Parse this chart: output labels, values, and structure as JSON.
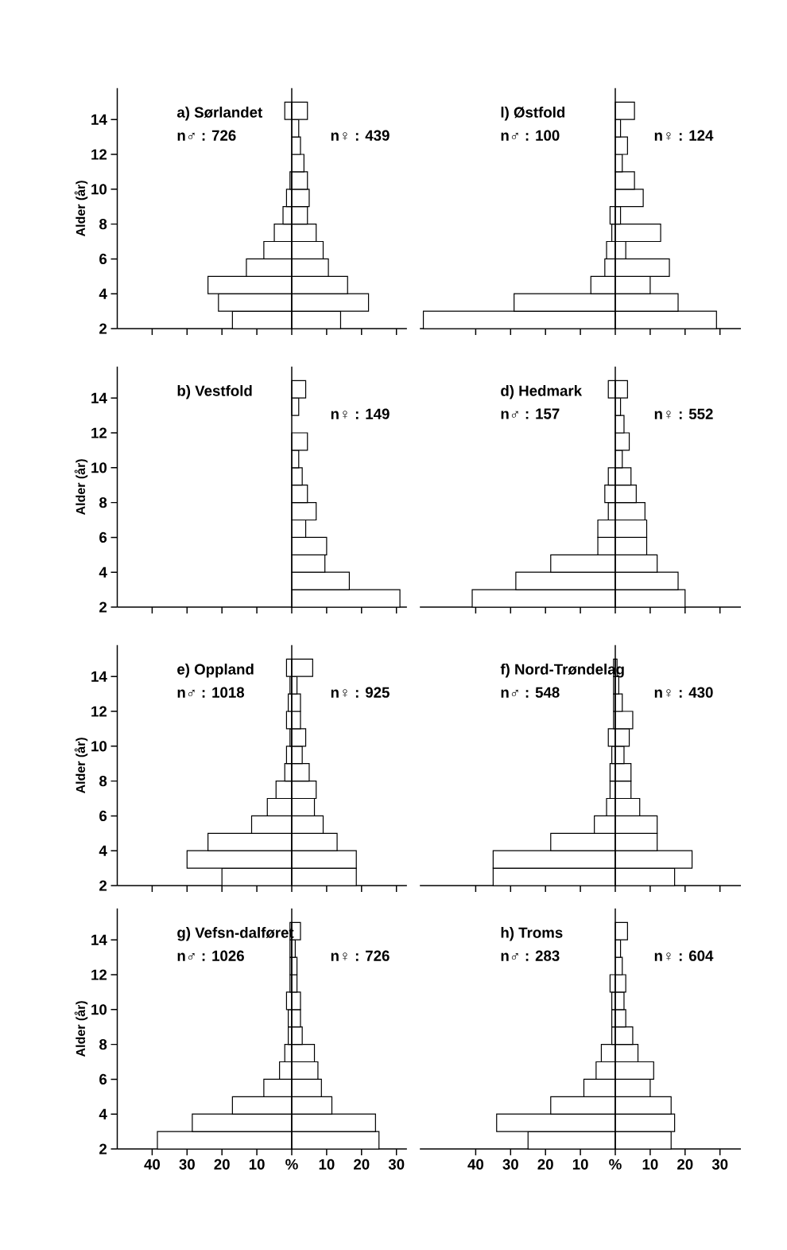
{
  "chart_data": [
    {
      "type": "bar",
      "orientation": "horizontal",
      "title": "a) Sørlandet",
      "annotations": [
        "n♂ : 726",
        "n♀ : 439"
      ],
      "stacked": true,
      "x": [
        2.5,
        3.5,
        4.5,
        5.5,
        6.5,
        7.5,
        8.5,
        9.5,
        10.5,
        11.5,
        12.5,
        13.5,
        14.5
      ],
      "series": [
        {
          "color": "#ffffff",
          "values": [
            -17,
            -21,
            -24,
            -13,
            -8,
            -5,
            -2.5,
            -1.5,
            -0.5,
            null,
            null,
            null,
            -2
          ]
        },
        {
          "color": "#ffffff",
          "values": [
            14,
            22,
            16,
            10.5,
            9,
            7,
            4.5,
            5,
            4.5,
            3.5,
            2.5,
            2,
            4.5
          ]
        }
      ],
      "xlim": [
        -50,
        33
      ],
      "xticks": [
        {
          "value": -40,
          "label": null
        },
        {
          "value": -30,
          "label": null
        },
        {
          "value": -20,
          "label": null
        },
        {
          "value": -10,
          "label": null
        },
        {
          "value": 0,
          "label": null
        },
        {
          "value": 10,
          "label": null
        },
        {
          "value": 20,
          "label": null
        },
        {
          "value": 30,
          "label": null
        }
      ],
      "ylim": [
        2,
        15.8
      ],
      "yticks": [
        2,
        4,
        6,
        8,
        10,
        12,
        14
      ],
      "ylabel": "Alder (år)",
      "tick_labels": "y",
      "ref_lines": [
        {
          "axis": "x",
          "value": 0
        }
      ]
    },
    {
      "type": "bar",
      "orientation": "horizontal",
      "title": "l) Østfold",
      "annotations": [
        "n♂ : 100",
        "n♀ : 124"
      ],
      "stacked": true,
      "x": [
        2.5,
        3.5,
        4.5,
        5.5,
        6.5,
        7.5,
        8.5,
        9.5,
        10.5,
        11.5,
        12.5,
        13.5,
        14.5
      ],
      "series": [
        {
          "color": "#ffffff",
          "values": [
            -55,
            -29,
            -7,
            -3,
            -2.5,
            -1,
            -1.5,
            null,
            null,
            null,
            null,
            null,
            null
          ]
        },
        {
          "color": "#ffffff",
          "values": [
            29,
            18,
            10,
            15.5,
            3,
            13,
            1.5,
            8,
            5.5,
            2,
            3.5,
            1.5,
            5.5
          ]
        }
      ],
      "xlim": [
        -56,
        36
      ],
      "xticks": [
        {
          "value": -40,
          "label": null
        },
        {
          "value": -30,
          "label": null
        },
        {
          "value": -20,
          "label": null
        },
        {
          "value": -10,
          "label": null
        },
        {
          "value": 0,
          "label": null
        },
        {
          "value": 10,
          "label": null
        },
        {
          "value": 20,
          "label": null
        },
        {
          "value": 30,
          "label": null
        }
      ],
      "ylim": [
        2,
        15.8
      ],
      "tick_labels": false,
      "ref_lines": [
        {
          "axis": "x",
          "value": 0
        }
      ]
    },
    {
      "type": "bar",
      "orientation": "horizontal",
      "title": "b) Vestfold",
      "annotations": [
        "n♀ : 149"
      ],
      "stacked": true,
      "x": [
        2.5,
        3.5,
        4.5,
        5.5,
        6.5,
        7.5,
        8.5,
        9.5,
        10.5,
        11.5,
        12.5,
        13.5,
        14.5
      ],
      "series": [
        {
          "color": "#ffffff",
          "values": [
            31,
            16.5,
            9.5,
            10,
            4,
            7,
            4.5,
            3,
            2,
            4.5,
            null,
            2,
            4
          ]
        }
      ],
      "xlim": [
        -50,
        33
      ],
      "xticks": [
        {
          "value": -40,
          "label": null
        },
        {
          "value": -30,
          "label": null
        },
        {
          "value": -20,
          "label": null
        },
        {
          "value": -10,
          "label": null
        },
        {
          "value": 0,
          "label": null
        },
        {
          "value": 10,
          "label": null
        },
        {
          "value": 20,
          "label": null
        },
        {
          "value": 30,
          "label": null
        }
      ],
      "ylim": [
        2,
        15.8
      ],
      "yticks": [
        2,
        4,
        6,
        8,
        10,
        12,
        14
      ],
      "ylabel": "Alder (år)",
      "tick_labels": "y",
      "ref_lines": [
        {
          "axis": "x",
          "value": 0
        }
      ]
    },
    {
      "type": "bar",
      "orientation": "horizontal",
      "title": "d) Hedmark",
      "annotations": [
        "n♂ : 157",
        "n♀ : 552"
      ],
      "stacked": true,
      "x": [
        2.5,
        3.5,
        4.5,
        5.5,
        6.5,
        7.5,
        8.5,
        9.5,
        10.5,
        11.5,
        12.5,
        13.5,
        14.5
      ],
      "series": [
        {
          "color": "#ffffff",
          "values": [
            -41,
            -28.5,
            -18.5,
            -5,
            -5,
            -2,
            -3,
            -2,
            null,
            null,
            null,
            null,
            -2
          ]
        },
        {
          "color": "#ffffff",
          "values": [
            20,
            18,
            12,
            9,
            9,
            8.5,
            6,
            4.5,
            2,
            4,
            2.5,
            1.5,
            3.5
          ]
        }
      ],
      "xlim": [
        -56,
        36
      ],
      "xticks": [
        {
          "value": -40,
          "label": null
        },
        {
          "value": -30,
          "label": null
        },
        {
          "value": -20,
          "label": null
        },
        {
          "value": -10,
          "label": null
        },
        {
          "value": 0,
          "label": null
        },
        {
          "value": 10,
          "label": null
        },
        {
          "value": 20,
          "label": null
        },
        {
          "value": 30,
          "label": null
        }
      ],
      "ylim": [
        2,
        15.8
      ],
      "tick_labels": false,
      "ref_lines": [
        {
          "axis": "x",
          "value": 0
        }
      ]
    },
    {
      "type": "bar",
      "orientation": "horizontal",
      "title": "e) Oppland",
      "annotations": [
        "n♂ : 1018",
        "n♀ : 925"
      ],
      "stacked": true,
      "x": [
        2.5,
        3.5,
        4.5,
        5.5,
        6.5,
        7.5,
        8.5,
        9.5,
        10.5,
        11.5,
        12.5,
        13.5,
        14.5
      ],
      "series": [
        {
          "color": "#ffffff",
          "values": [
            -20,
            -30,
            -24,
            -11.5,
            -7,
            -4.5,
            -2,
            -1.5,
            -0.5,
            -1.5,
            -1,
            -0.5,
            -1.5
          ]
        },
        {
          "color": "#ffffff",
          "values": [
            18.5,
            18.5,
            13,
            9,
            6.5,
            7,
            5,
            3,
            4,
            2.5,
            2.5,
            1.5,
            6
          ]
        }
      ],
      "xlim": [
        -50,
        33
      ],
      "xticks": [
        {
          "value": -40,
          "label": null
        },
        {
          "value": -30,
          "label": null
        },
        {
          "value": -20,
          "label": null
        },
        {
          "value": -10,
          "label": null
        },
        {
          "value": 0,
          "label": null
        },
        {
          "value": 10,
          "label": null
        },
        {
          "value": 20,
          "label": null
        },
        {
          "value": 30,
          "label": null
        }
      ],
      "ylim": [
        2,
        15.8
      ],
      "yticks": [
        2,
        4,
        6,
        8,
        10,
        12,
        14
      ],
      "ylabel": "Alder (år)",
      "tick_labels": "y",
      "ref_lines": [
        {
          "axis": "x",
          "value": 0
        }
      ]
    },
    {
      "type": "bar",
      "orientation": "horizontal",
      "title": "f) Nord-Trøndelag",
      "annotations": [
        "n♂ : 548",
        "n♀ : 430"
      ],
      "stacked": true,
      "x": [
        2.5,
        3.5,
        4.5,
        5.5,
        6.5,
        7.5,
        8.5,
        9.5,
        10.5,
        11.5,
        12.5,
        13.5,
        14.5
      ],
      "series": [
        {
          "color": "#ffffff",
          "values": [
            -35,
            -35,
            -18.5,
            -6,
            -2.5,
            -1.5,
            -1.5,
            -1,
            -2,
            -0.5,
            -0.5,
            -0.5,
            -0.5
          ]
        },
        {
          "color": "#ffffff",
          "values": [
            17,
            22,
            12,
            12,
            7,
            4.5,
            4.5,
            2.5,
            4,
            5,
            2,
            1,
            0.5
          ]
        }
      ],
      "xlim": [
        -56,
        36
      ],
      "xticks": [
        {
          "value": -40,
          "label": null
        },
        {
          "value": -30,
          "label": null
        },
        {
          "value": -20,
          "label": null
        },
        {
          "value": -10,
          "label": null
        },
        {
          "value": 0,
          "label": null
        },
        {
          "value": 10,
          "label": null
        },
        {
          "value": 20,
          "label": null
        },
        {
          "value": 30,
          "label": null
        }
      ],
      "ylim": [
        2,
        15.8
      ],
      "tick_labels": false,
      "ref_lines": [
        {
          "axis": "x",
          "value": 0
        }
      ]
    },
    {
      "type": "bar",
      "orientation": "horizontal",
      "title": "g) Vefsn-dalføret",
      "annotations": [
        "n♂ : 1026",
        "n♀ : 726"
      ],
      "stacked": true,
      "x": [
        2.5,
        3.5,
        4.5,
        5.5,
        6.5,
        7.5,
        8.5,
        9.5,
        10.5,
        11.5,
        12.5,
        13.5,
        14.5
      ],
      "series": [
        {
          "color": "#ffffff",
          "values": [
            -38.5,
            -28.5,
            -17,
            -8,
            -3.5,
            -2,
            -1,
            -1,
            -1.5,
            -0.5,
            -0.5,
            -0.5,
            -0.5
          ]
        },
        {
          "color": "#ffffff",
          "values": [
            25,
            24,
            11.5,
            8.5,
            7.5,
            6.5,
            3,
            2.5,
            2.5,
            1.5,
            1.5,
            1,
            2.5
          ]
        }
      ],
      "xlim": [
        -50,
        33
      ],
      "xticks": [
        {
          "value": -40,
          "label": "40"
        },
        {
          "value": -30,
          "label": "30"
        },
        {
          "value": -20,
          "label": "20"
        },
        {
          "value": -10,
          "label": "10"
        },
        {
          "value": 0,
          "label": "%"
        },
        10,
        20,
        30
      ],
      "ylim": [
        2,
        15.8
      ],
      "yticks": [
        2,
        4,
        6,
        8,
        10,
        12,
        14
      ],
      "ylabel": "Alder (år)",
      "ref_lines": [
        {
          "axis": "x",
          "value": 0
        }
      ]
    },
    {
      "type": "bar",
      "orientation": "horizontal",
      "title": "h) Troms",
      "annotations": [
        "n♂ : 283",
        "n♀ : 604"
      ],
      "stacked": true,
      "x": [
        2.5,
        3.5,
        4.5,
        5.5,
        6.5,
        7.5,
        8.5,
        9.5,
        10.5,
        11.5,
        12.5,
        13.5,
        14.5
      ],
      "series": [
        {
          "color": "#ffffff",
          "values": [
            -25,
            -34,
            -18.5,
            -9,
            -5.5,
            -4,
            -1,
            -1,
            -1,
            -1.5,
            null,
            null,
            null
          ]
        },
        {
          "color": "#ffffff",
          "values": [
            16,
            17,
            16,
            10,
            11,
            6.5,
            5,
            3,
            2.5,
            3,
            2,
            1.5,
            3.5
          ]
        }
      ],
      "xlim": [
        -56,
        36
      ],
      "xticks": [
        {
          "value": -40,
          "label": "40"
        },
        {
          "value": -30,
          "label": "30"
        },
        {
          "value": -20,
          "label": "20"
        },
        {
          "value": -10,
          "label": "10"
        },
        {
          "value": 0,
          "label": "%"
        },
        10,
        20,
        30
      ],
      "ylim": [
        2,
        15.8
      ],
      "tick_labels": "x",
      "ref_lines": [
        {
          "axis": "x",
          "value": 0
        }
      ]
    }
  ]
}
